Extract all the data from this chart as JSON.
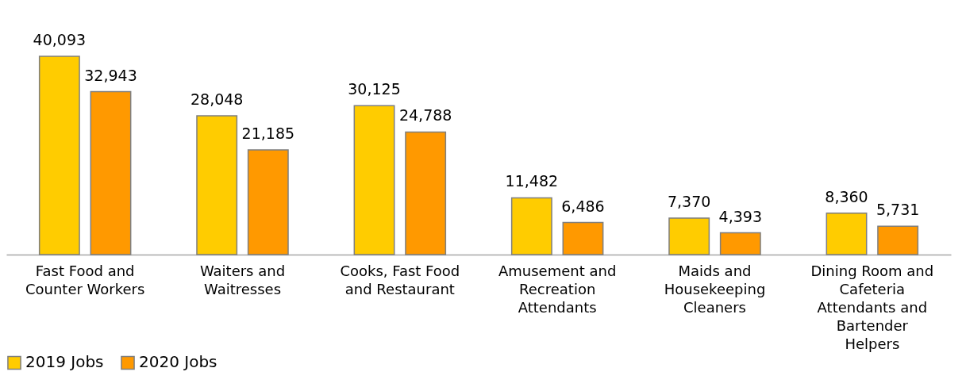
{
  "chart_data": {
    "type": "bar",
    "categories": [
      "Fast Food and Counter Workers",
      "Waiters and Waitresses",
      "Cooks, Fast Food and Restaurant",
      "Amusement and Recreation Attendants",
      "Maids and Housekeeping Cleaners",
      "Dining Room and Cafeteria Attendants and Bartender Helpers"
    ],
    "series": [
      {
        "name": "2019 Jobs",
        "color": "#ffcc00",
        "values": [
          40093,
          28048,
          30125,
          11482,
          7370,
          8360
        ],
        "value_labels": [
          "40,093",
          "28,048",
          "30,125",
          "11,482",
          "7,370",
          "8,360"
        ]
      },
      {
        "name": "2020 Jobs",
        "color": "#ff9900",
        "values": [
          32943,
          21185,
          24788,
          6486,
          4393,
          5731
        ],
        "value_labels": [
          "32,943",
          "21,185",
          "24,788",
          "6,486",
          "4,393",
          "5,731"
        ]
      }
    ],
    "legend": "bottom",
    "grid": false
  }
}
